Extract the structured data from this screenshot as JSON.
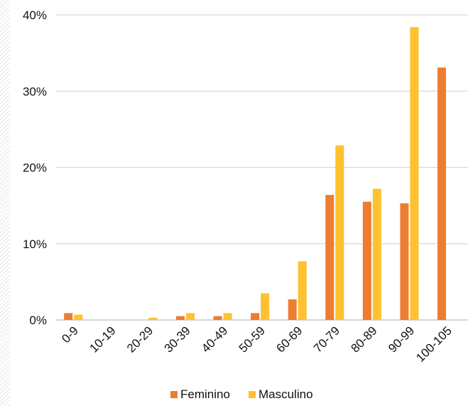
{
  "chart_data": {
    "type": "bar",
    "categories": [
      "0-9",
      "10-19",
      "20-29",
      "30-39",
      "40-49",
      "50-59",
      "60-69",
      "70-79",
      "80-89",
      "90-99",
      "100-105"
    ],
    "series": [
      {
        "name": "Feminino",
        "color": "#ED7D31",
        "values": [
          0.9,
          0,
          0,
          0.5,
          0.5,
          0.9,
          2.7,
          16.4,
          15.5,
          15.3,
          33.1
        ]
      },
      {
        "name": "Masculino",
        "color": "#FFC12F",
        "values": [
          0.7,
          0,
          0.3,
          0.9,
          0.9,
          3.5,
          7.7,
          22.9,
          17.2,
          38.4,
          0
        ]
      }
    ],
    "y_ticks": [
      "0%",
      "10%",
      "20%",
      "30%",
      "40%"
    ],
    "ylim": [
      0,
      40
    ],
    "grid": true,
    "legend_position": "bottom",
    "title": "",
    "xlabel": "",
    "ylabel": ""
  }
}
